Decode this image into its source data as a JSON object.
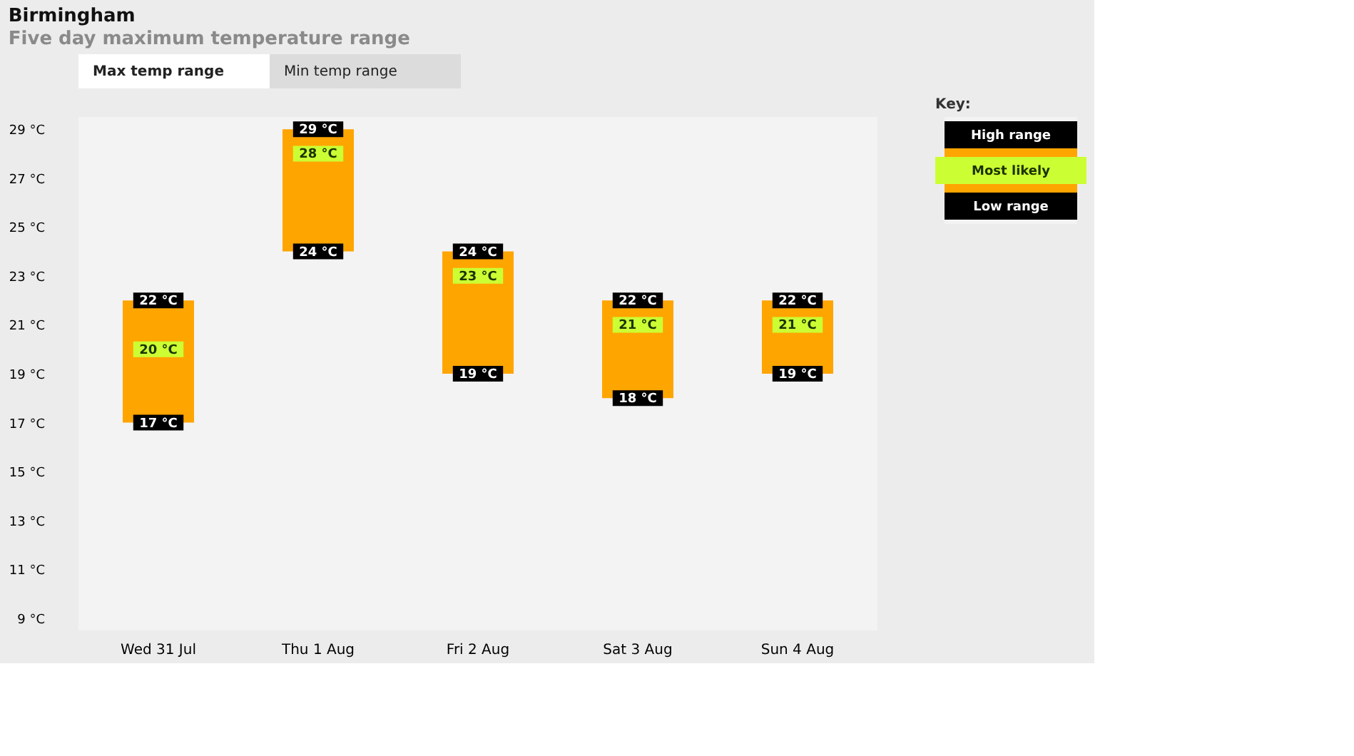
{
  "chart_data": {
    "type": "bar",
    "title": "Birmingham",
    "subtitle": "Five day maximum temperature range",
    "annotations": [
      "Max temp range",
      "Min temp range"
    ],
    "legend_title": "Key:",
    "legend": "right",
    "grid": false,
    "categories": [
      "Wed 31 Jul",
      "Thu 1 Aug",
      "Fri 2 Aug",
      "Sat 3 Aug",
      "Sun 4 Aug"
    ],
    "ylim": [
      8.5,
      29.5
    ],
    "yticks": [
      {
        "value": 9,
        "label": "9 °C"
      },
      {
        "value": 11,
        "label": "11 °C"
      },
      {
        "value": 13,
        "label": "13 °C"
      },
      {
        "value": 15,
        "label": "15 °C"
      },
      {
        "value": 17,
        "label": "17 °C"
      },
      {
        "value": 19,
        "label": "19 °C"
      },
      {
        "value": 21,
        "label": "21 °C"
      },
      {
        "value": 23,
        "label": "23 °C"
      },
      {
        "value": 25,
        "label": "25 °C"
      },
      {
        "value": 27,
        "label": "27 °C"
      },
      {
        "value": 29,
        "label": "29 °C"
      }
    ],
    "base": [
      17,
      24,
      19,
      18,
      19
    ],
    "values": [
      5,
      5,
      5,
      4,
      3
    ],
    "color": "#ffa500",
    "series": [
      {
        "type": "scatter",
        "name": "High range",
        "color": "#000000",
        "marker": "square",
        "values": [
          22,
          29,
          24,
          22,
          22
        ],
        "value_labels": [
          "22 °C",
          "29 °C",
          "24 °C",
          "22 °C",
          "22 °C"
        ]
      },
      {
        "type": "scatter",
        "name": "Most likely",
        "color": "#ccff33",
        "marker": "square",
        "values": [
          20,
          28,
          23,
          21,
          21
        ],
        "value_labels": [
          "20 °C",
          "28 °C",
          "23 °C",
          "21 °C",
          "21 °C"
        ]
      },
      {
        "type": "scatter",
        "name": "Low range",
        "color": "#000000",
        "marker": "square",
        "values": [
          17,
          24,
          19,
          18,
          19
        ],
        "value_labels": [
          "17 °C",
          "24 °C",
          "19 °C",
          "18 °C",
          "19 °C"
        ]
      }
    ]
  }
}
